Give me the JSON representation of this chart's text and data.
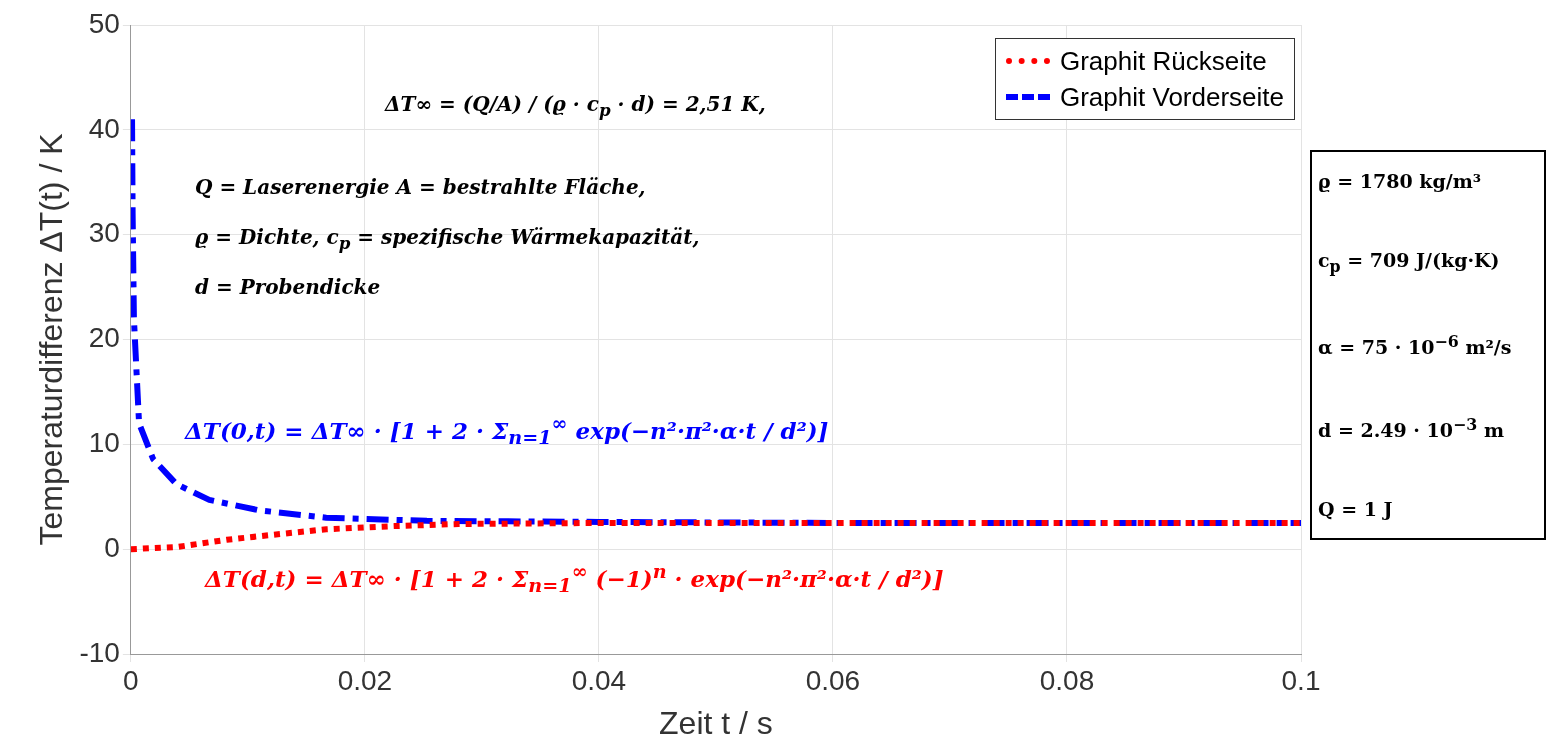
{
  "chart_data": {
    "type": "line",
    "xlabel": "Zeit t / s",
    "ylabel": "Temperaturdifferenz ΔT(t) / K",
    "xlim": [
      0,
      0.1
    ],
    "xticks": [
      0,
      0.02,
      0.04,
      0.06,
      0.08,
      0.1
    ],
    "ylim": [
      -10,
      50
    ],
    "yticks": [
      -10,
      0,
      10,
      20,
      30,
      40,
      50
    ],
    "grid": true,
    "legend": "top right",
    "marker": "none",
    "series": [
      {
        "name": "Graphit Rückseite",
        "color": "#ff0000",
        "line_style": "dotted",
        "x": [
          0,
          0.0039,
          0.0082,
          0.0124,
          0.0167,
          0.0225,
          0.028,
          0.04,
          0.06,
          0.08,
          0.1
        ],
        "values": [
          0,
          0.2,
          0.9,
          1.4,
          1.9,
          2.2,
          2.4,
          2.5,
          2.5,
          2.5,
          2.5
        ]
      },
      {
        "name": "Graphit Vorderseite",
        "color": "#0000ff",
        "line_style": "dashed",
        "x": [
          0.0001,
          0.00015,
          0.00026,
          0.0007,
          0.0019,
          0.0039,
          0.0067,
          0.011,
          0.0167,
          0.0253,
          0.04,
          0.06,
          0.08,
          0.1
        ],
        "values": [
          41,
          32,
          22,
          12,
          8.6,
          6.2,
          4.7,
          3.7,
          3.0,
          2.7,
          2.6,
          2.5,
          2.5,
          2.5
        ]
      }
    ],
    "annotations": [
      "ΔT∞ = (Q/A) / (ϱ · c$_{p}$ · d) = 2,51 K,",
      "Q = Laserenergie  A = bestrahlte Fläche,",
      "ϱ = Dichte,     c$_{p}$ = spezifische Wärmekapazität,",
      "d = Probendicke",
      "ΔT(0,t) = ΔT∞ · [1 + 2 · Σ$_{n=1}$$^{∞}$ exp(−n²·π²·α·t / d²)]",
      "ΔT(d,t) = ΔT∞ · [1 + 2 · Σ$_{n=1}$$^{∞}$ (−1)$^{n}$ · exp(−n²·π²·α·t / d²)]",
      "ϱ = 1780 kg/m³",
      "c$_{p}$ = 709 J/(kg·K)",
      "α = 75 · 10$^{−6}$ m²/s",
      "d = 2.49 · 10$^{−3}$ m",
      "Q = 1 J"
    ]
  }
}
